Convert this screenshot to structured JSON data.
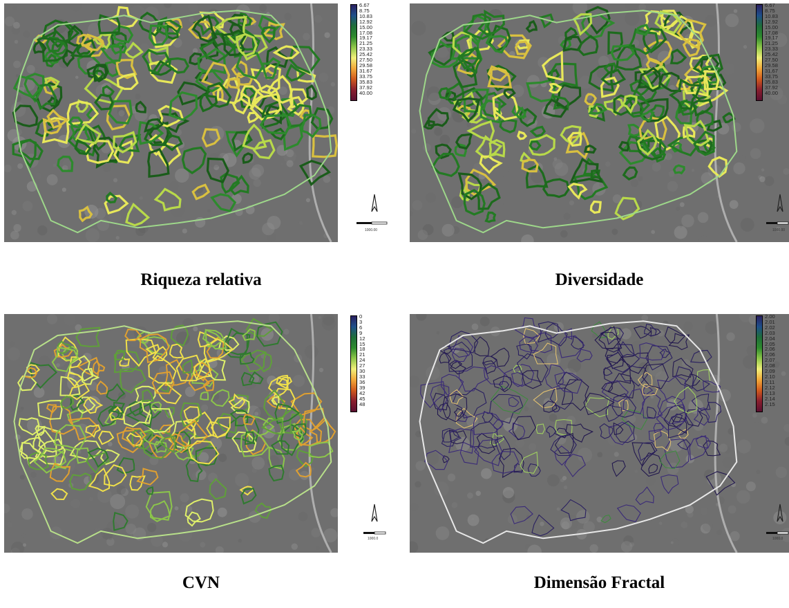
{
  "panels": [
    {
      "caption": "Riqueza relativa",
      "palette": "green",
      "legend_ticks": [
        "6.67",
        "8.75",
        "10.83",
        "12.92",
        "15.00",
        "17.08",
        "19.17",
        "21.25",
        "23.33",
        "25.42",
        "27.50",
        "29.58",
        "31.67",
        "33.75",
        "35.83",
        "37.92",
        "40.00"
      ],
      "scale_label": "1000.00"
    },
    {
      "caption": "Diversidade",
      "palette": "green",
      "legend_ticks": [
        "6.67",
        "8.75",
        "10.83",
        "12.92",
        "15.00",
        "17.08",
        "19.17",
        "21.25",
        "23.33",
        "25.42",
        "27.50",
        "29.58",
        "31.67",
        "33.75",
        "35.83",
        "37.92",
        "40.00"
      ],
      "scale_label": "1000.00"
    },
    {
      "caption": "CVN",
      "palette": "yellow",
      "legend_ticks": [
        "0",
        "3",
        "6",
        "9",
        "12",
        "15",
        "18",
        "21",
        "24",
        "27",
        "30",
        "33",
        "36",
        "39",
        "42",
        "45",
        "48"
      ],
      "scale_label": "1000.0"
    },
    {
      "caption": "Dimensão Fractal",
      "palette": "purple",
      "legend_ticks": [
        "2.00",
        "2.01",
        "2.02",
        "2.03",
        "2.04",
        "2.05",
        "2.06",
        "2.06",
        "2.07",
        "2.08",
        "2.09",
        "2.10",
        "2.11",
        "2.12",
        "2.13",
        "2.14",
        "2.15"
      ],
      "scale_label": "1000.0"
    }
  ],
  "colors": {
    "background": "#6f6f6f",
    "ramp": [
      "#2a2060",
      "#1f4f8a",
      "#1f6e3a",
      "#2e8b2e",
      "#8fc74a",
      "#f2f07a",
      "#f2a93a",
      "#d05a1e",
      "#8a1f2e",
      "#5a1030"
    ]
  },
  "icons": {
    "north_arrow": "north-arrow-icon",
    "scale_bar": "scale-bar-icon"
  }
}
